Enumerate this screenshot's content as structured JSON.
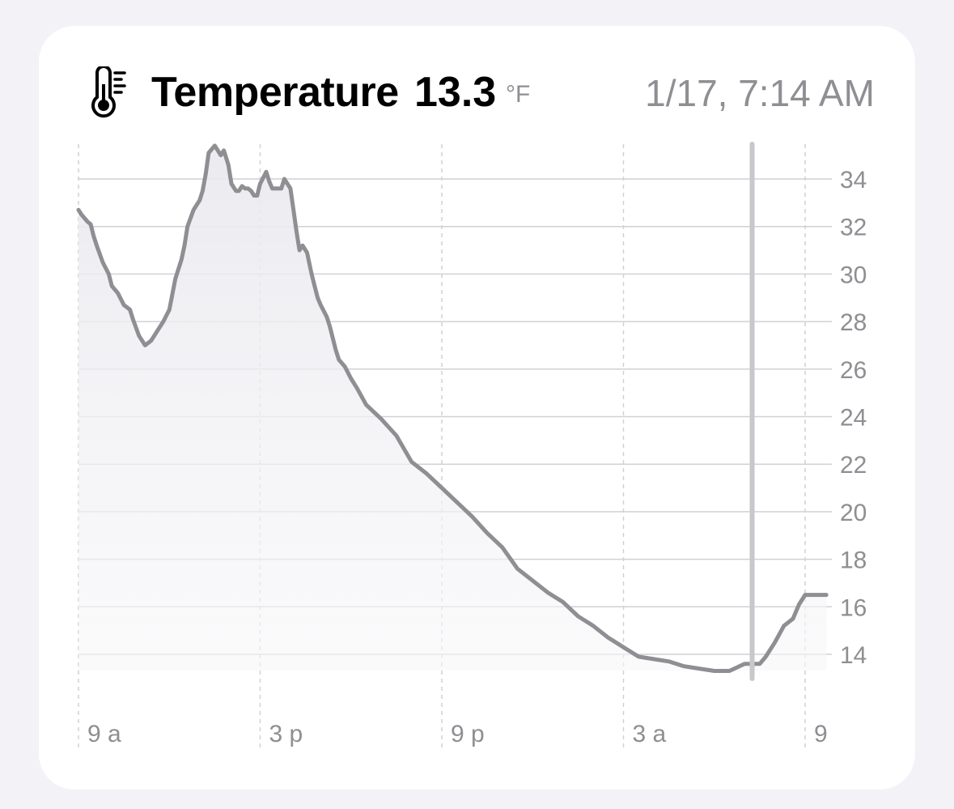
{
  "header": {
    "title": "Temperature",
    "current_value": "13.3",
    "unit": "°F",
    "timestamp": "1/17, 7:14 AM",
    "icon": "thermometer-icon"
  },
  "colors": {
    "background": "#f2f2f7",
    "card": "#ffffff",
    "line": "#8e8e93",
    "grid": "#d1d1d6",
    "cursor": "#c7c7cc",
    "label": "#8e8e93"
  },
  "chart_data": {
    "type": "area",
    "title": "",
    "xlabel": "",
    "ylabel": "",
    "x_tick_labels": [
      "9 a",
      "3 p",
      "9 p",
      "3 a",
      "9"
    ],
    "x_tick_hours": [
      0,
      6,
      12,
      18,
      24
    ],
    "y_ticks": [
      14,
      16,
      18,
      20,
      22,
      24,
      26,
      28,
      30,
      32,
      34
    ],
    "ylim": [
      12,
      35.4
    ],
    "xlim": [
      0,
      24.7
    ],
    "grid": true,
    "y_axis_position": "right",
    "selected_hour": 22.25,
    "selected_value": 13.3,
    "series": [
      {
        "x": [
          0,
          0.1,
          0.3,
          0.4,
          0.5,
          0.6,
          0.8,
          1.0,
          1.1,
          1.3,
          1.5,
          1.7,
          1.8,
          2.0,
          2.2,
          2.4,
          2.6,
          2.8,
          3.0,
          3.2,
          3.4,
          3.5,
          3.6,
          3.8,
          3.9,
          4.0,
          4.1,
          4.2,
          4.3,
          4.5,
          4.7,
          4.8,
          4.95,
          5.05,
          5.2,
          5.3,
          5.4,
          5.5,
          5.6,
          5.7,
          5.8,
          5.9,
          6.0,
          6.2,
          6.3,
          6.4,
          6.5,
          6.7,
          6.8,
          7.0,
          7.1,
          7.2,
          7.3,
          7.4,
          7.55,
          7.7,
          7.8,
          7.9,
          8.0,
          8.2,
          8.3,
          8.4,
          8.5,
          8.6,
          8.8,
          9.0,
          9.2,
          9.5,
          10.0,
          10.5,
          11.0,
          11.5,
          12.0,
          12.5,
          13.0,
          13.5,
          14.0,
          14.5,
          15.0,
          15.5,
          16.0,
          16.5,
          17.0,
          17.5,
          18.0,
          18.5,
          19.0,
          19.5,
          20.0,
          20.5,
          21.0,
          21.5,
          22.0,
          22.5,
          22.7,
          23.0,
          23.3,
          23.6,
          23.8,
          24.0,
          24.1,
          24.3,
          24.5,
          24.7
        ],
        "y": [
          32.7,
          32.5,
          32.2,
          32.1,
          31.6,
          31.2,
          30.5,
          30.0,
          29.5,
          29.2,
          28.7,
          28.5,
          28.1,
          27.4,
          27.0,
          27.2,
          27.6,
          28.0,
          28.5,
          29.8,
          30.6,
          31.2,
          32.0,
          32.7,
          32.9,
          33.1,
          33.5,
          34.2,
          35.1,
          35.4,
          35.0,
          35.2,
          34.6,
          33.8,
          33.5,
          33.5,
          33.7,
          33.6,
          33.6,
          33.5,
          33.3,
          33.3,
          33.8,
          34.3,
          33.9,
          33.6,
          33.6,
          33.6,
          34.0,
          33.6,
          32.7,
          31.8,
          31.0,
          31.2,
          30.9,
          30.0,
          29.5,
          29.0,
          28.7,
          28.2,
          27.8,
          27.3,
          26.8,
          26.4,
          26.1,
          25.6,
          25.2,
          24.5,
          23.9,
          23.2,
          22.1,
          21.6,
          21.0,
          20.4,
          19.8,
          19.1,
          18.5,
          17.6,
          17.1,
          16.6,
          16.2,
          15.6,
          15.2,
          14.7,
          14.3,
          13.9,
          13.8,
          13.7,
          13.5,
          13.4,
          13.3,
          13.3,
          13.6,
          13.6,
          13.9,
          14.5,
          15.2,
          15.5,
          16.1,
          16.5,
          16.5,
          16.5,
          16.5,
          16.5
        ]
      }
    ]
  }
}
